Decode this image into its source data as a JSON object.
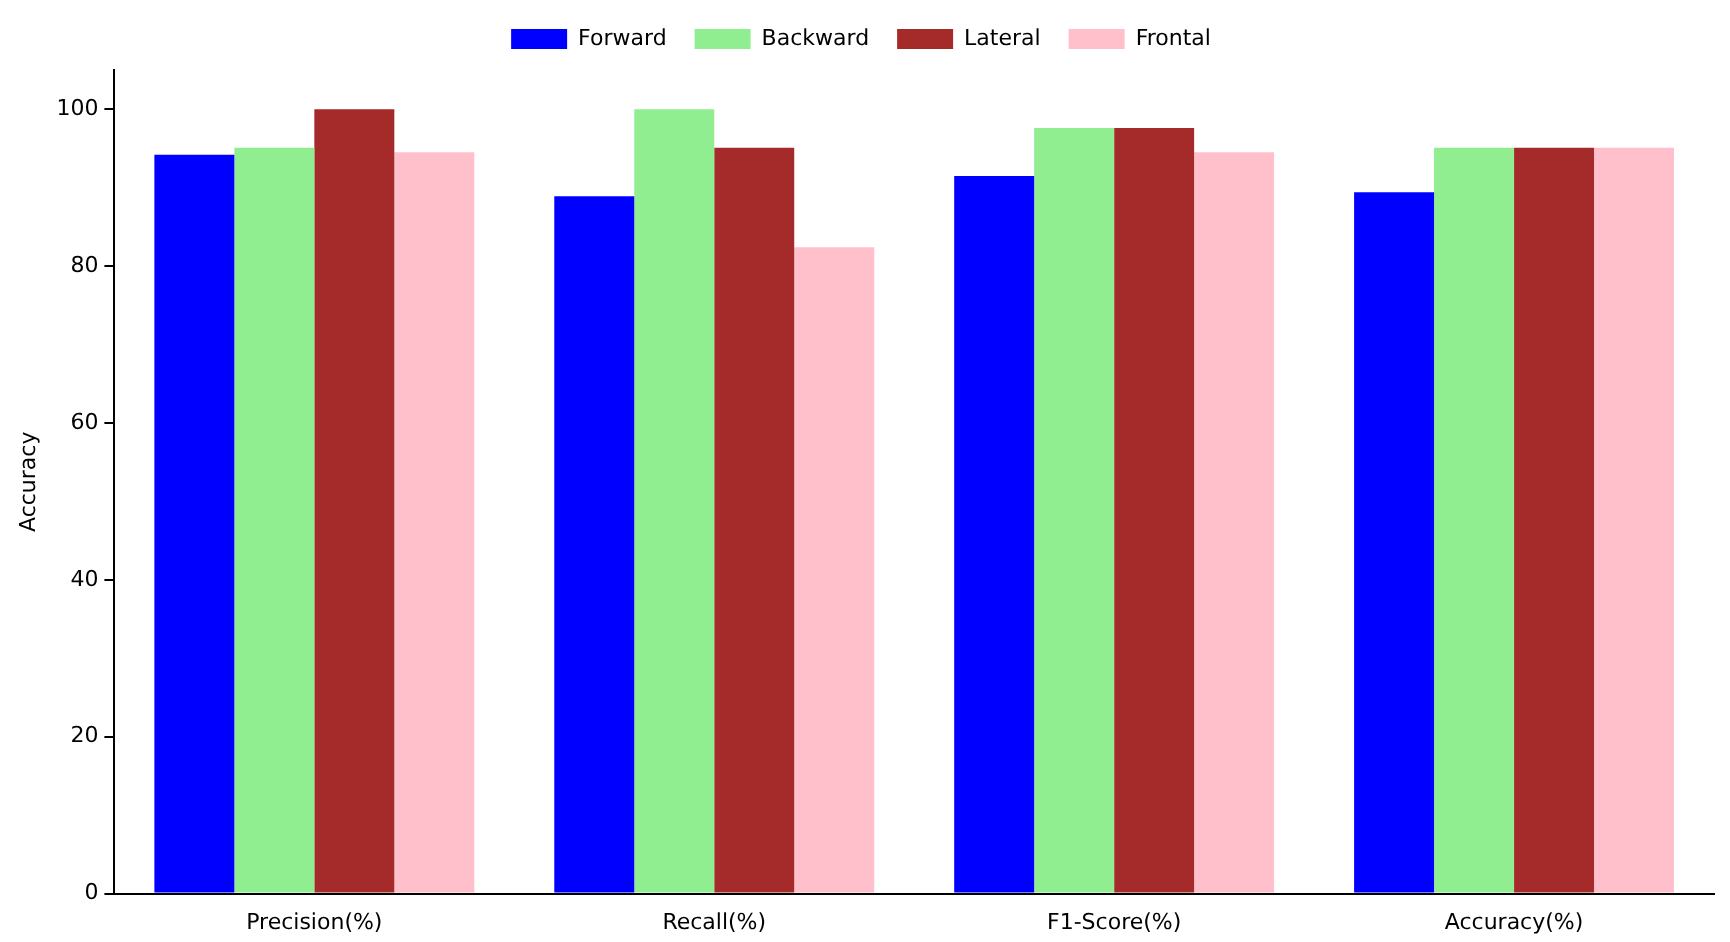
{
  "chart_data": {
    "type": "bar",
    "ylabel": "Accuracy",
    "categories": [
      "Precision(%)",
      "Recall(%)",
      "F1-Score(%)",
      "Accuracy(%)"
    ],
    "series": [
      {
        "name": "Forward",
        "color": "#0000ff",
        "values": [
          94.2,
          88.9,
          91.5,
          89.4
        ]
      },
      {
        "name": "Backward",
        "color": "#90ee90",
        "values": [
          95.1,
          100,
          97.6,
          95.1
        ]
      },
      {
        "name": "Lateral",
        "color": "#a52a2a",
        "values": [
          100,
          95.1,
          97.6,
          95.1
        ]
      },
      {
        "name": "Frontal",
        "color": "#ffc0cb",
        "values": [
          94.5,
          82.4,
          94.5,
          95.1
        ]
      }
    ],
    "ylim": [
      0,
      105
    ],
    "yticks": [
      0,
      20,
      40,
      60,
      80,
      100
    ],
    "grid": false,
    "legend": "top"
  }
}
